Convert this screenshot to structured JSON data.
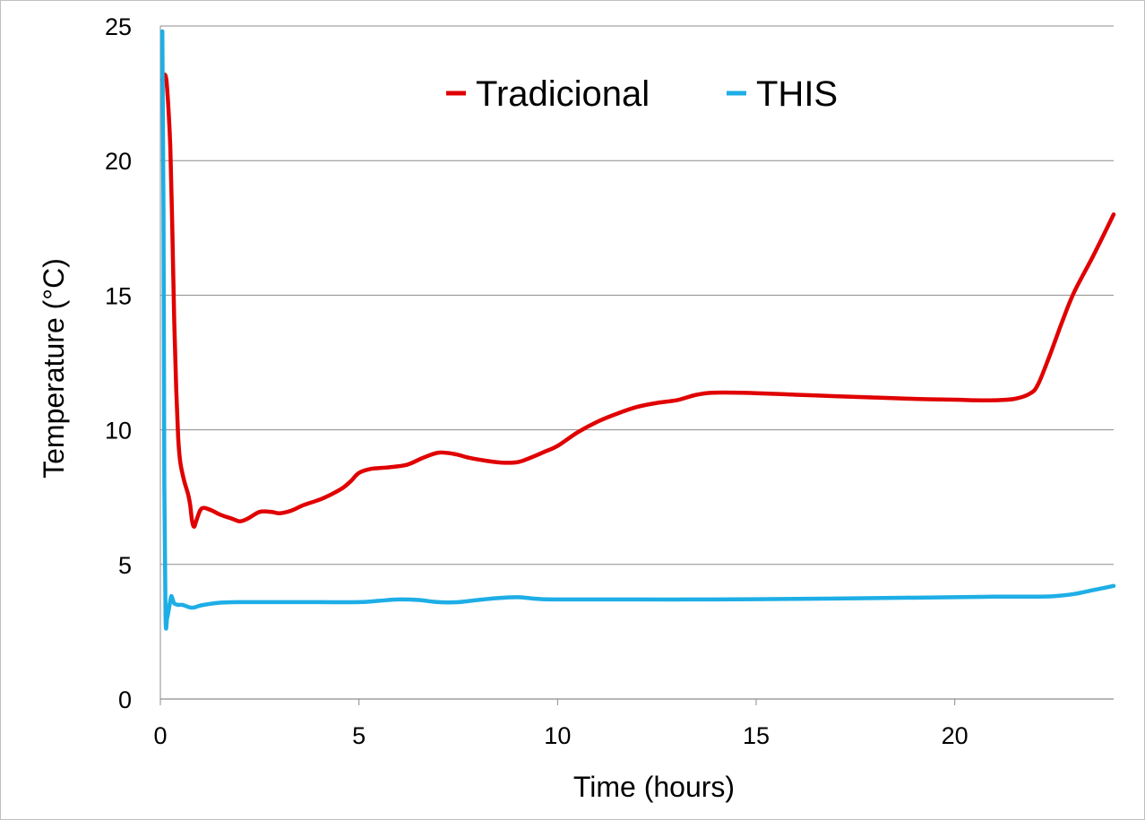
{
  "chart_data": {
    "type": "line",
    "title": "",
    "xlabel": "Time (hours)",
    "ylabel": "Temperature (°C)",
    "xlim": [
      0,
      24
    ],
    "ylim": [
      0,
      25
    ],
    "x_ticks": [
      0,
      5,
      10,
      15,
      20
    ],
    "y_ticks": [
      0,
      5,
      10,
      15,
      20,
      25
    ],
    "grid": "horizontal",
    "legend_position": "top",
    "series": [
      {
        "name": "Tradicional",
        "color": "#e00000",
        "points": [
          [
            0.05,
            23.0
          ],
          [
            0.1,
            23.2
          ],
          [
            0.15,
            23.0
          ],
          [
            0.2,
            22.0
          ],
          [
            0.25,
            20.5
          ],
          [
            0.3,
            17.5
          ],
          [
            0.35,
            14.0
          ],
          [
            0.4,
            11.5
          ],
          [
            0.45,
            9.7
          ],
          [
            0.5,
            8.8
          ],
          [
            0.6,
            8.1
          ],
          [
            0.7,
            7.6
          ],
          [
            0.75,
            7.2
          ],
          [
            0.8,
            6.6
          ],
          [
            0.85,
            6.4
          ],
          [
            0.9,
            6.6
          ],
          [
            1.0,
            7.0
          ],
          [
            1.1,
            7.1
          ],
          [
            1.3,
            7.0
          ],
          [
            1.5,
            6.85
          ],
          [
            1.8,
            6.7
          ],
          [
            2.0,
            6.6
          ],
          [
            2.2,
            6.7
          ],
          [
            2.5,
            6.95
          ],
          [
            2.8,
            6.95
          ],
          [
            3.0,
            6.9
          ],
          [
            3.3,
            7.0
          ],
          [
            3.6,
            7.2
          ],
          [
            4.0,
            7.4
          ],
          [
            4.3,
            7.6
          ],
          [
            4.6,
            7.85
          ],
          [
            4.8,
            8.1
          ],
          [
            5.0,
            8.4
          ],
          [
            5.3,
            8.55
          ],
          [
            5.7,
            8.6
          ],
          [
            6.2,
            8.7
          ],
          [
            6.6,
            8.95
          ],
          [
            7.0,
            9.15
          ],
          [
            7.4,
            9.1
          ],
          [
            7.8,
            8.95
          ],
          [
            8.2,
            8.85
          ],
          [
            8.6,
            8.78
          ],
          [
            9.0,
            8.8
          ],
          [
            9.3,
            8.95
          ],
          [
            9.7,
            9.2
          ],
          [
            10.0,
            9.4
          ],
          [
            10.5,
            9.9
          ],
          [
            11.0,
            10.3
          ],
          [
            11.5,
            10.6
          ],
          [
            12.0,
            10.85
          ],
          [
            12.5,
            11.0
          ],
          [
            13.0,
            11.1
          ],
          [
            13.5,
            11.3
          ],
          [
            14.0,
            11.38
          ],
          [
            15.0,
            11.36
          ],
          [
            16.0,
            11.3
          ],
          [
            17.0,
            11.25
          ],
          [
            18.0,
            11.2
          ],
          [
            19.0,
            11.15
          ],
          [
            20.0,
            11.12
          ],
          [
            20.5,
            11.1
          ],
          [
            21.0,
            11.1
          ],
          [
            21.5,
            11.15
          ],
          [
            21.9,
            11.35
          ],
          [
            22.1,
            11.7
          ],
          [
            22.4,
            12.8
          ],
          [
            22.7,
            14.0
          ],
          [
            23.0,
            15.1
          ],
          [
            23.5,
            16.5
          ],
          [
            24.0,
            18.0
          ]
        ]
      },
      {
        "name": "THIS",
        "color": "#1eaee6",
        "points": [
          [
            0.05,
            24.8
          ],
          [
            0.08,
            18.0
          ],
          [
            0.1,
            8.0
          ],
          [
            0.13,
            3.0
          ],
          [
            0.17,
            3.0
          ],
          [
            0.22,
            3.4
          ],
          [
            0.27,
            3.8
          ],
          [
            0.3,
            3.75
          ],
          [
            0.35,
            3.55
          ],
          [
            0.45,
            3.5
          ],
          [
            0.55,
            3.5
          ],
          [
            0.65,
            3.45
          ],
          [
            0.75,
            3.4
          ],
          [
            0.85,
            3.4
          ],
          [
            0.95,
            3.45
          ],
          [
            1.1,
            3.5
          ],
          [
            1.5,
            3.58
          ],
          [
            2.0,
            3.6
          ],
          [
            3.0,
            3.6
          ],
          [
            4.0,
            3.6
          ],
          [
            5.0,
            3.6
          ],
          [
            5.5,
            3.65
          ],
          [
            6.0,
            3.7
          ],
          [
            6.5,
            3.68
          ],
          [
            7.0,
            3.6
          ],
          [
            7.5,
            3.6
          ],
          [
            8.0,
            3.68
          ],
          [
            8.5,
            3.75
          ],
          [
            9.0,
            3.78
          ],
          [
            9.5,
            3.72
          ],
          [
            10.0,
            3.7
          ],
          [
            12.0,
            3.7
          ],
          [
            14.0,
            3.7
          ],
          [
            16.0,
            3.72
          ],
          [
            18.0,
            3.75
          ],
          [
            20.0,
            3.78
          ],
          [
            21.0,
            3.8
          ],
          [
            22.0,
            3.8
          ],
          [
            22.5,
            3.82
          ],
          [
            23.0,
            3.9
          ],
          [
            23.5,
            4.05
          ],
          [
            24.0,
            4.2
          ]
        ]
      }
    ]
  }
}
